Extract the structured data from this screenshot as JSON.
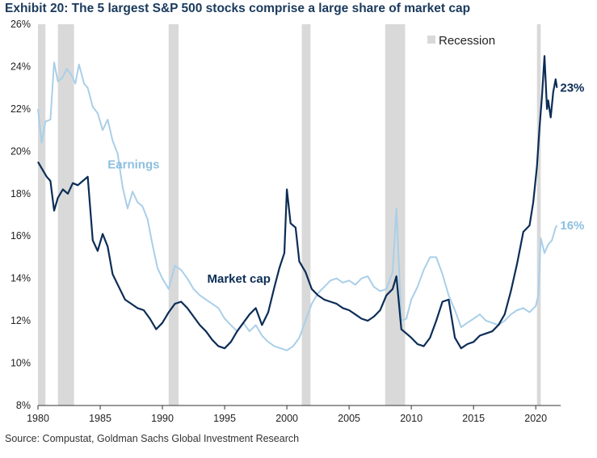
{
  "title": "Exhibit 20: The 5 largest S&P 500 stocks comprise a large share of market cap",
  "source": "Source: Compustat, Goldman Sachs Global Investment Research",
  "chart_data": {
    "type": "line",
    "xlim": [
      1980,
      2022
    ],
    "ylim": [
      8,
      26
    ],
    "x_ticks": [
      1980,
      1985,
      1990,
      1995,
      2000,
      2005,
      2010,
      2015,
      2020
    ],
    "y_ticks": [
      8,
      10,
      12,
      14,
      16,
      18,
      20,
      22,
      24,
      26
    ],
    "x_tick_labels": [
      "1980",
      "1985",
      "1990",
      "1995",
      "2000",
      "2005",
      "2010",
      "2015",
      "2020"
    ],
    "y_tick_labels": [
      "8%",
      "10%",
      "12%",
      "14%",
      "16%",
      "18%",
      "20%",
      "22%",
      "24%",
      "26%"
    ],
    "ylabel_unit": "%",
    "grid": false,
    "legend": {
      "label": "Recession",
      "position": "top-right"
    },
    "recessions": [
      [
        1980.0,
        1980.6
      ],
      [
        1981.6,
        1982.9
      ],
      [
        1990.5,
        1991.3
      ],
      [
        2001.2,
        2001.9
      ],
      [
        2007.9,
        2009.5
      ],
      [
        2020.1,
        2020.4
      ]
    ],
    "series": [
      {
        "name": "Market cap",
        "color": "#0b2d56",
        "end_label": "23%",
        "x": [
          1980.0,
          1980.3,
          1980.7,
          1981.0,
          1981.3,
          1981.6,
          1982.0,
          1982.4,
          1982.8,
          1983.2,
          1983.6,
          1984.0,
          1984.4,
          1984.8,
          1985.2,
          1985.6,
          1986.0,
          1986.5,
          1987.0,
          1987.5,
          1988.0,
          1988.5,
          1989.0,
          1989.5,
          1990.0,
          1990.5,
          1991.0,
          1991.5,
          1992.0,
          1992.5,
          1993.0,
          1993.5,
          1994.0,
          1994.5,
          1995.0,
          1995.5,
          1996.0,
          1996.5,
          1997.0,
          1997.5,
          1998.0,
          1998.5,
          1999.0,
          1999.4,
          1999.8,
          2000.0,
          2000.3,
          2000.7,
          2001.0,
          2001.5,
          2002.0,
          2002.5,
          2003.0,
          2003.5,
          2004.0,
          2004.5,
          2005.0,
          2005.5,
          2006.0,
          2006.5,
          2007.0,
          2007.5,
          2008.0,
          2008.5,
          2008.8,
          2009.2,
          2009.6,
          2010.0,
          2010.5,
          2011.0,
          2011.5,
          2012.0,
          2012.5,
          2013.0,
          2013.5,
          2014.0,
          2014.5,
          2015.0,
          2015.5,
          2016.0,
          2016.5,
          2017.0,
          2017.5,
          2018.0,
          2018.5,
          2019.0,
          2019.5,
          2019.8,
          2020.1,
          2020.3,
          2020.5,
          2020.7,
          2020.9,
          2021.0,
          2021.2,
          2021.4,
          2021.6,
          2021.7
        ],
        "values": [
          19.5,
          19.2,
          18.8,
          18.6,
          17.2,
          17.8,
          18.2,
          18.0,
          18.5,
          18.4,
          18.6,
          18.8,
          15.8,
          15.3,
          16.1,
          15.5,
          14.2,
          13.6,
          13.0,
          12.8,
          12.6,
          12.5,
          12.1,
          11.6,
          11.9,
          12.4,
          12.8,
          12.9,
          12.6,
          12.2,
          11.8,
          11.5,
          11.1,
          10.8,
          10.7,
          11.0,
          11.5,
          11.9,
          12.3,
          12.6,
          11.8,
          12.4,
          13.6,
          14.5,
          15.2,
          18.2,
          16.6,
          16.4,
          14.8,
          14.3,
          13.5,
          13.2,
          13.0,
          12.9,
          12.8,
          12.6,
          12.5,
          12.3,
          12.1,
          12.0,
          12.2,
          12.5,
          13.2,
          13.5,
          14.1,
          11.6,
          11.4,
          11.2,
          10.9,
          10.8,
          11.2,
          12.0,
          12.9,
          13.0,
          11.2,
          10.7,
          10.9,
          11.0,
          11.3,
          11.4,
          11.5,
          11.8,
          12.3,
          13.4,
          14.7,
          16.2,
          16.5,
          17.6,
          19.3,
          21.1,
          22.6,
          24.5,
          22.0,
          22.4,
          21.6,
          22.8,
          23.4,
          23.0
        ]
      },
      {
        "name": "Earnings",
        "color": "#a9cfe8",
        "end_label": "16%",
        "x": [
          1980.0,
          1980.3,
          1980.6,
          1981.0,
          1981.3,
          1981.6,
          1982.0,
          1982.3,
          1982.7,
          1983.0,
          1983.3,
          1983.7,
          1984.0,
          1984.4,
          1984.8,
          1985.2,
          1985.6,
          1986.0,
          1986.4,
          1986.8,
          1987.2,
          1987.6,
          1988.0,
          1988.4,
          1988.8,
          1989.2,
          1989.6,
          1990.0,
          1990.5,
          1991.0,
          1991.5,
          1992.0,
          1992.5,
          1993.0,
          1993.5,
          1994.0,
          1994.5,
          1995.0,
          1995.5,
          1996.0,
          1996.5,
          1997.0,
          1997.5,
          1998.0,
          1998.5,
          1999.0,
          1999.5,
          2000.0,
          2000.5,
          2001.0,
          2001.5,
          2002.0,
          2002.5,
          2003.0,
          2003.5,
          2004.0,
          2004.5,
          2005.0,
          2005.5,
          2006.0,
          2006.5,
          2007.0,
          2007.5,
          2008.0,
          2008.5,
          2008.8,
          2009.2,
          2009.6,
          2010.0,
          2010.5,
          2011.0,
          2011.5,
          2012.0,
          2012.5,
          2013.0,
          2013.5,
          2014.0,
          2014.5,
          2015.0,
          2015.5,
          2016.0,
          2016.5,
          2017.0,
          2017.5,
          2018.0,
          2018.5,
          2019.0,
          2019.5,
          2020.0,
          2020.2,
          2020.4,
          2020.7,
          2021.0,
          2021.3,
          2021.6,
          2021.7
        ],
        "values": [
          22.0,
          20.4,
          21.4,
          21.5,
          24.2,
          23.3,
          23.5,
          23.9,
          23.6,
          23.2,
          24.1,
          23.2,
          23.0,
          22.1,
          21.8,
          21.0,
          21.5,
          20.5,
          19.9,
          18.3,
          17.3,
          18.1,
          17.6,
          17.4,
          16.8,
          15.6,
          14.5,
          14.0,
          13.5,
          14.6,
          14.4,
          14.0,
          13.5,
          13.2,
          13.0,
          12.8,
          12.6,
          12.1,
          11.8,
          11.5,
          11.9,
          11.5,
          11.8,
          11.3,
          11.0,
          10.8,
          10.7,
          10.6,
          10.8,
          11.2,
          12.0,
          12.8,
          13.3,
          13.6,
          13.9,
          14.0,
          13.8,
          13.9,
          13.7,
          14.0,
          14.1,
          13.6,
          13.4,
          13.5,
          14.3,
          17.3,
          12.0,
          12.1,
          13.0,
          13.6,
          14.4,
          15.0,
          15.0,
          14.2,
          13.2,
          12.5,
          11.7,
          11.9,
          12.1,
          12.3,
          12.0,
          11.9,
          11.8,
          12.0,
          12.3,
          12.5,
          12.6,
          12.4,
          12.7,
          13.2,
          15.9,
          15.2,
          15.6,
          15.8,
          16.4,
          16.5
        ]
      }
    ],
    "annotations": [
      {
        "text": "Earnings",
        "series": "Earnings",
        "x": 1985.6,
        "y": 19.2
      },
      {
        "text": "Market cap",
        "series": "Market cap",
        "x": 1993.6,
        "y": 13.8
      }
    ]
  }
}
